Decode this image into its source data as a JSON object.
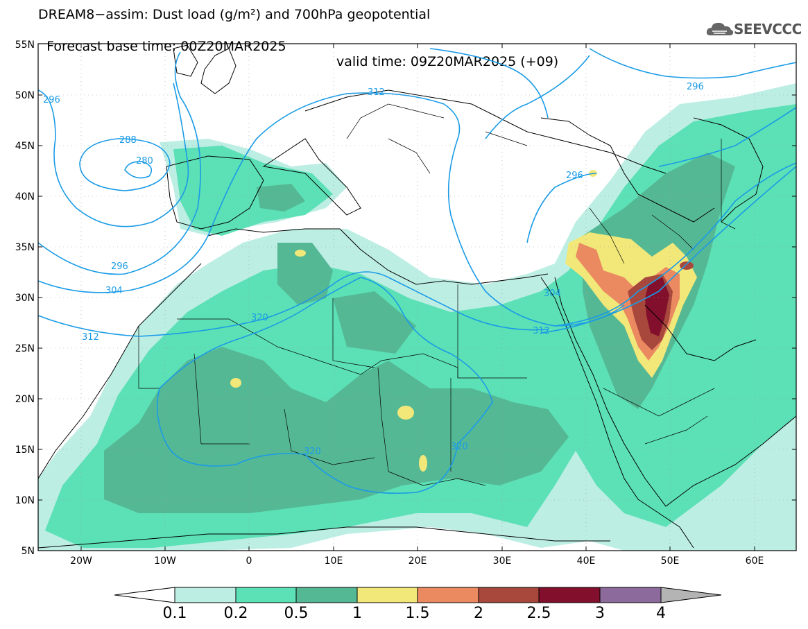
{
  "title": {
    "line1": "DREAM8−assim: Dust load (g/m²) and 700hPa geopotential",
    "line2_base": "Forecast base time: 00Z20MAR2025",
    "line2_valid": "valid time: 09Z20MAR2025 (+09)"
  },
  "logo": {
    "text": "SEEVCCC"
  },
  "axes": {
    "lat_labels": [
      "55N",
      "50N",
      "45N",
      "40N",
      "35N",
      "30N",
      "25N",
      "20N",
      "15N",
      "10N",
      "5N"
    ],
    "lon_labels": [
      "20W",
      "10W",
      "0",
      "10E",
      "20E",
      "30E",
      "40E",
      "50E",
      "60E"
    ]
  },
  "contours": {
    "color": "#1a9be6",
    "labels": [
      "296",
      "288",
      "280",
      "296",
      "304",
      "312",
      "320",
      "312",
      "320",
      "320",
      "296",
      "304",
      "312",
      "296"
    ]
  },
  "colorbar": {
    "ticks": [
      "0.1",
      "0.2",
      "0.5",
      "1",
      "1.5",
      "2",
      "2.5",
      "3",
      "4"
    ],
    "colors": [
      "#bdeee4",
      "#5ce0b5",
      "#55b895",
      "#f2e87a",
      "#eb8a60",
      "#a8473c",
      "#820f2c",
      "#8c6b9c",
      "#b4b4b4"
    ]
  },
  "dust_colors": {
    "light": "#bdeee4",
    "medium": "#5ce0b5",
    "dark": "#55b895",
    "yellow": "#f2e87a",
    "orange": "#eb8a60",
    "brown": "#a8473c",
    "maroon": "#820f2c"
  }
}
